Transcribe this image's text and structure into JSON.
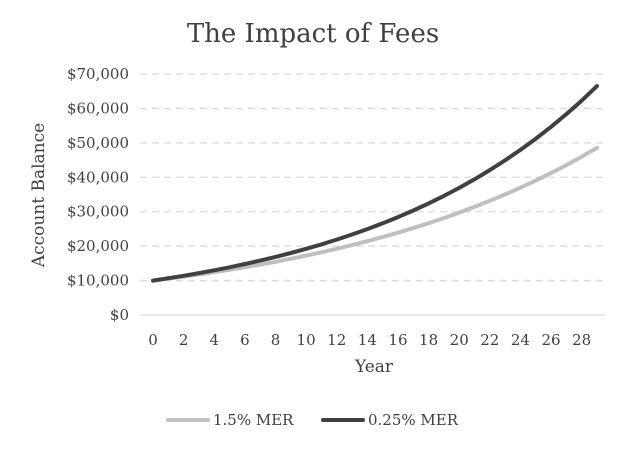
{
  "chart_data": {
    "type": "line",
    "title": "The Impact of Fees",
    "xlabel": "Year",
    "ylabel": "Account Balance",
    "x": [
      0,
      1,
      2,
      3,
      4,
      5,
      6,
      7,
      8,
      9,
      10,
      11,
      12,
      13,
      14,
      15,
      16,
      17,
      18,
      19,
      20,
      21,
      22,
      23,
      24,
      25,
      26,
      27,
      28,
      29
    ],
    "x_tick_labels": [
      "0",
      "2",
      "4",
      "6",
      "8",
      "10",
      "12",
      "14",
      "16",
      "18",
      "20",
      "22",
      "24",
      "26",
      "28"
    ],
    "ylim": [
      0,
      70000
    ],
    "y_ticks": [
      0,
      10000,
      20000,
      30000,
      40000,
      50000,
      60000,
      70000
    ],
    "y_tick_labels": [
      "$0",
      "$10,000",
      "$20,000",
      "$30,000",
      "$40,000",
      "$50,000",
      "$60,000",
      "$70,000"
    ],
    "grid": true,
    "legend_position": "bottom",
    "series": [
      {
        "name": "1.5% MER",
        "color": "#bfbfbf",
        "values": [
          10000,
          10560,
          11151,
          11776,
          12435,
          13132,
          13867,
          14644,
          15464,
          16330,
          17244,
          18210,
          19230,
          20307,
          21444,
          22645,
          23913,
          25252,
          26666,
          28159,
          29736,
          31402,
          33160,
          35017,
          36978,
          39049,
          41236,
          43545,
          45984,
          48559
        ]
      },
      {
        "name": "0.25% MER",
        "color": "#404040",
        "values": [
          10000,
          10675,
          11396,
          12165,
          12986,
          13863,
          14799,
          15798,
          16864,
          18002,
          19218,
          20515,
          21900,
          23378,
          24956,
          26640,
          28439,
          30358,
          32407,
          34595,
          36930,
          39423,
          42084,
          44925,
          47957,
          51194,
          54650,
          58339,
          62277,
          66480
        ]
      }
    ]
  }
}
